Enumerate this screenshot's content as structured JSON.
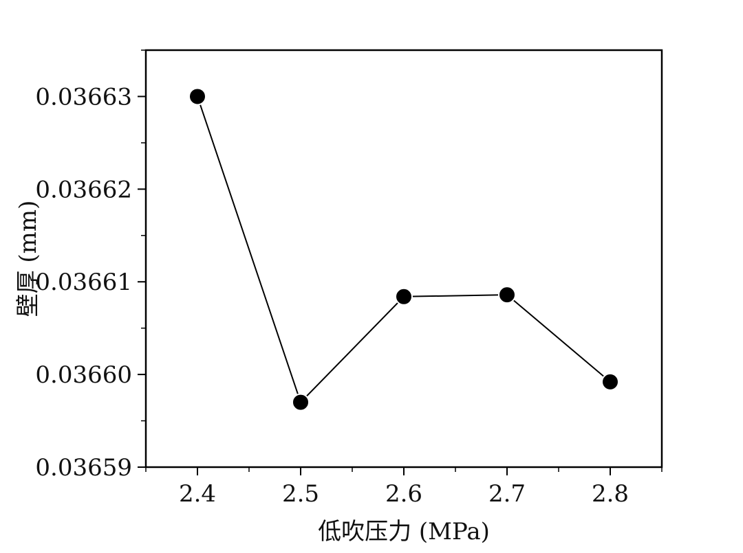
{
  "chart_data": {
    "type": "line",
    "title": "",
    "xlabel": "低吹压力 (MPa)",
    "ylabel": "壁厚 (mm)",
    "x": [
      2.4,
      2.5,
      2.6,
      2.7,
      2.8
    ],
    "series": [
      {
        "values": [
          0.03663,
          0.036597,
          0.0366084,
          0.0366086,
          0.0365992
        ]
      }
    ],
    "xlim": [
      2.35,
      2.85
    ],
    "ylim": [
      0.03659,
      0.036635
    ],
    "x_ticks": [
      "2.4",
      "2.5",
      "2.6",
      "2.7",
      "2.8"
    ],
    "y_ticks": [
      "0.03659",
      "0.03660",
      "0.03661",
      "0.03662",
      "0.03663"
    ],
    "x_tick_values": [
      2.4,
      2.5,
      2.6,
      2.7,
      2.8
    ],
    "y_tick_values": [
      0.03659,
      0.0366,
      0.03661,
      0.03662,
      0.03663
    ],
    "grid": false,
    "legend": "none",
    "colors": {
      "line": "#000000",
      "marker": "#000000",
      "axis": "#000000"
    }
  }
}
